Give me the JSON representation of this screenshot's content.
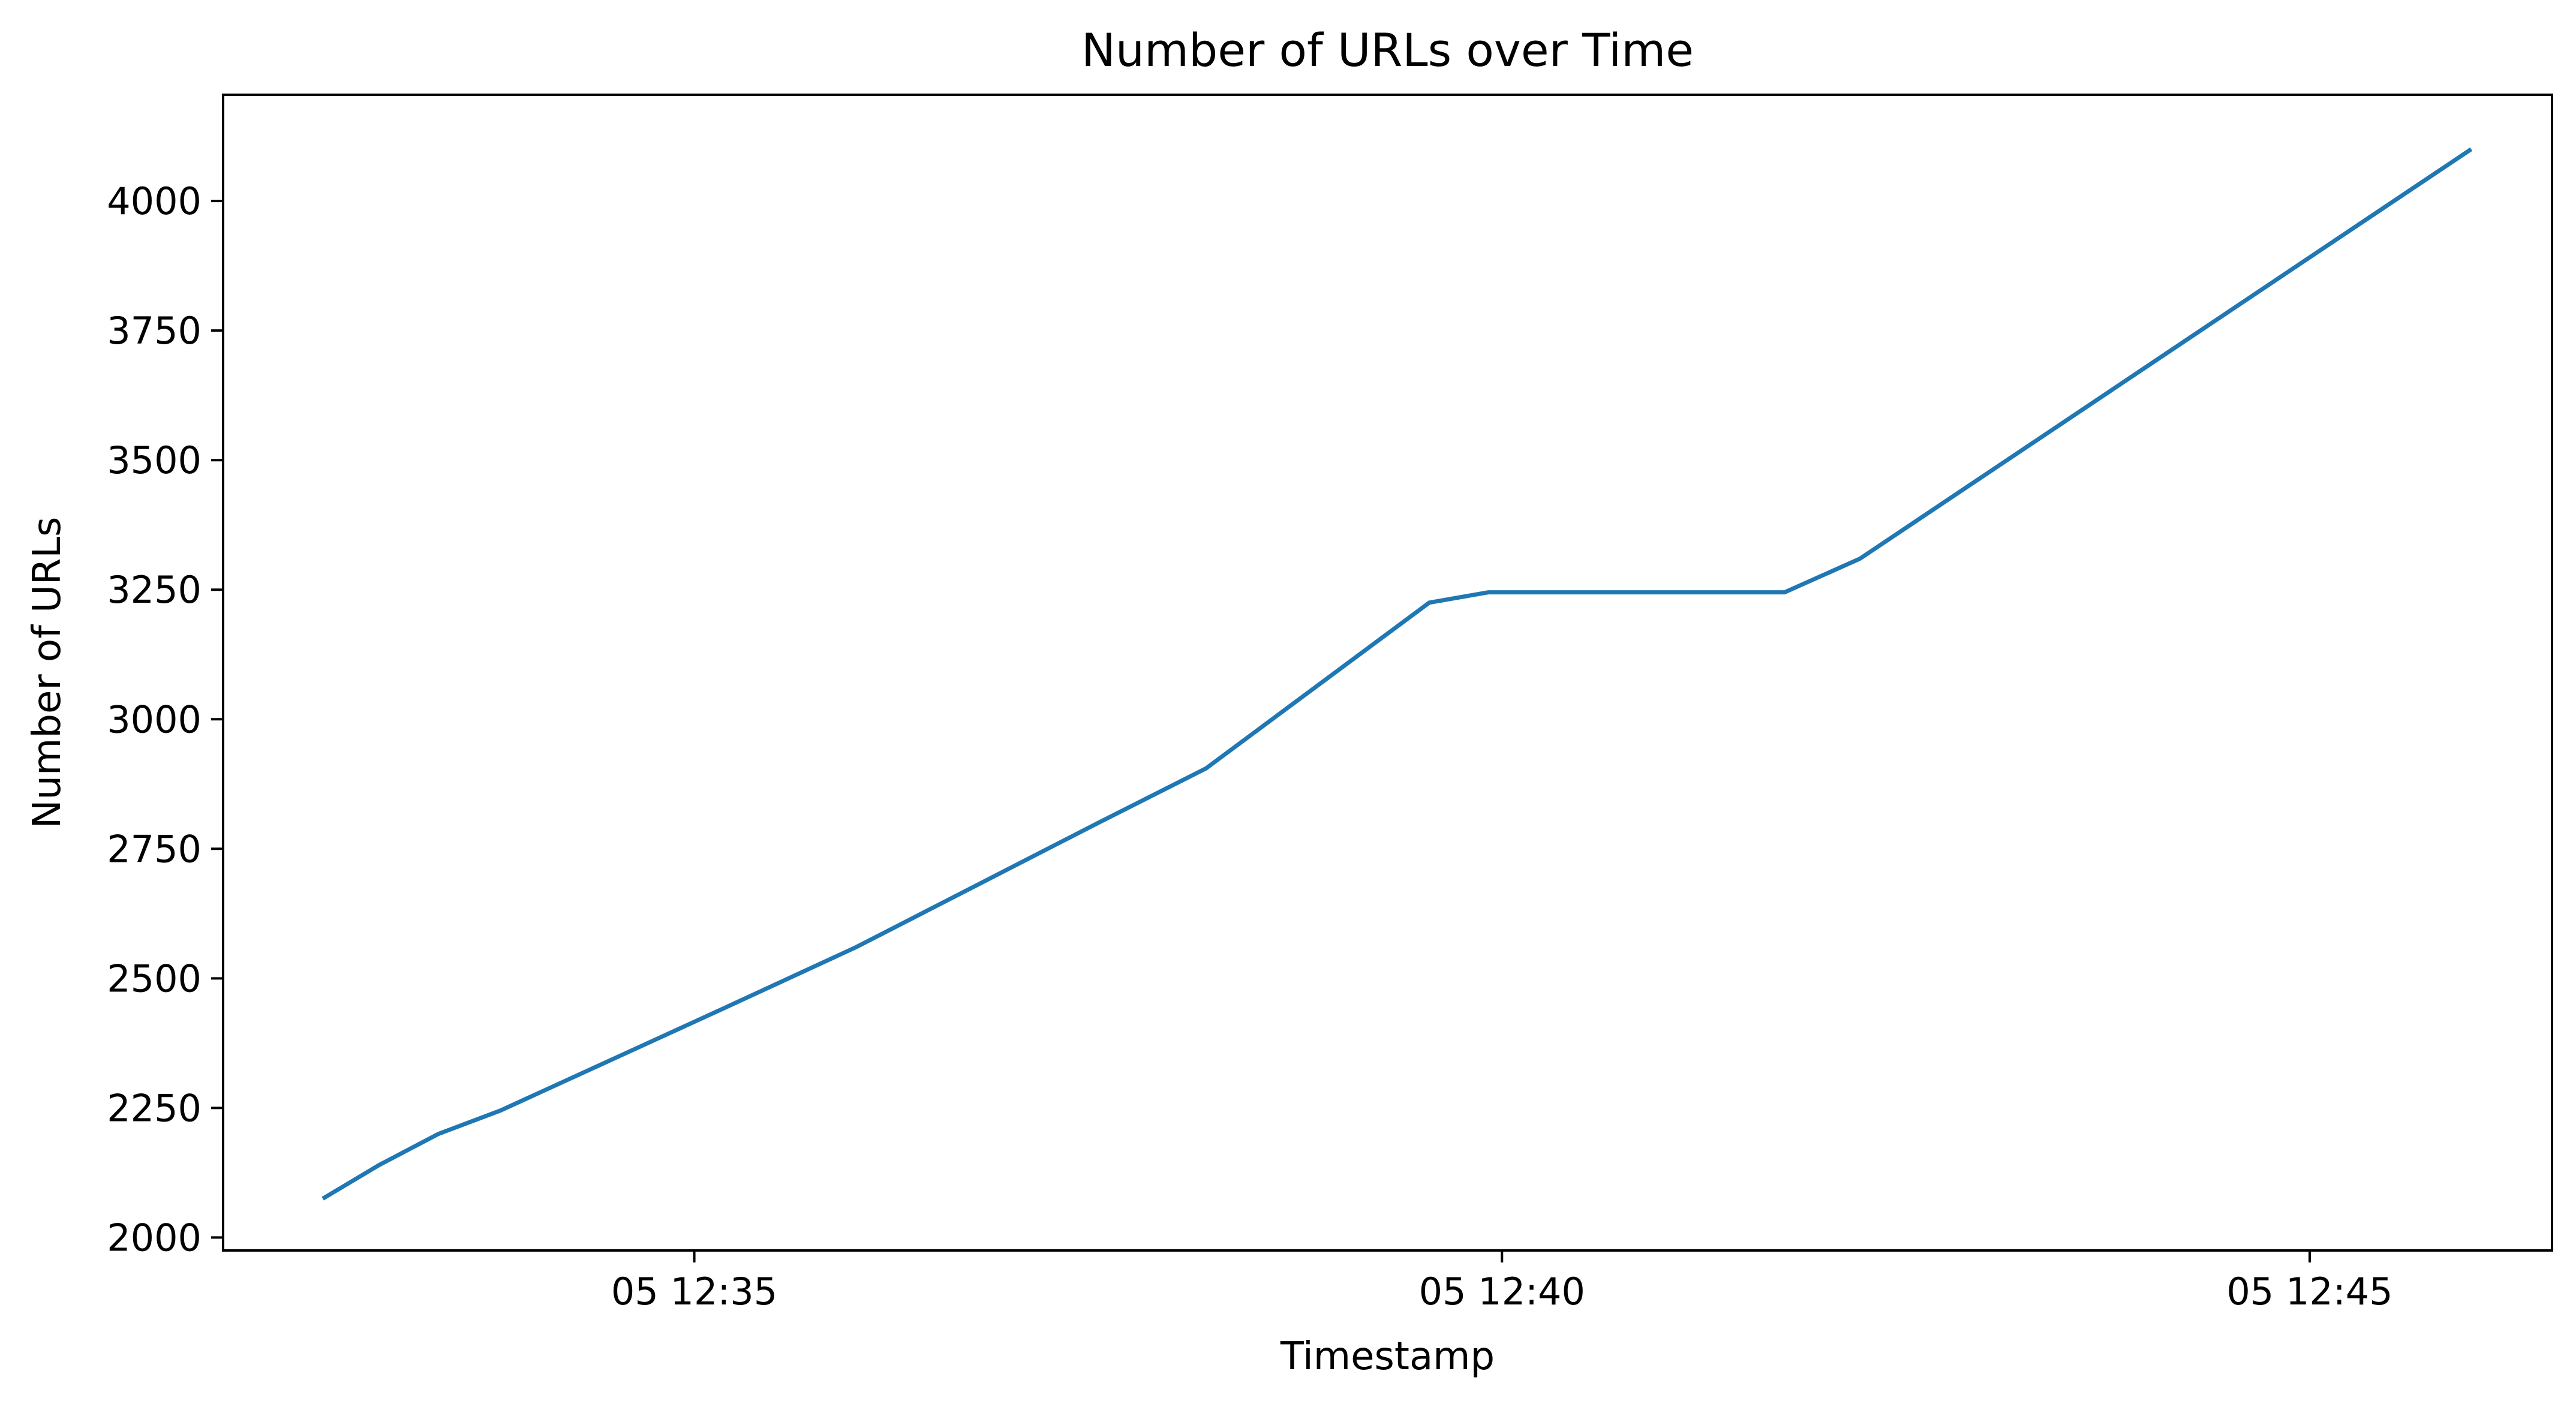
{
  "chart_data": {
    "type": "line",
    "title": "Number of URLs over Time",
    "xlabel": "Timestamp",
    "ylabel": "Number of URLs",
    "x_tick_labels": [
      "05 12:35",
      "05 12:40",
      "05 12:45"
    ],
    "x_ticks_minutes": [
      "12:35",
      "12:40",
      "12:45"
    ],
    "y_ticks": [
      2000,
      2250,
      2500,
      2750,
      3000,
      3250,
      3500,
      3750,
      4000
    ],
    "xlim": [
      "12:32:05",
      "12:46:30"
    ],
    "ylim": [
      1975,
      4205
    ],
    "grid": false,
    "series": [
      {
        "color": "#1f77b4",
        "x": [
          "12:32:42",
          "12:33:03",
          "12:33:25",
          "12:33:48",
          "12:35:10",
          "12:36:00",
          "12:37:30",
          "12:38:10",
          "12:39:33",
          "12:39:55",
          "12:41:45",
          "12:42:13",
          "12:46:00"
        ],
        "values": [
          2075,
          2140,
          2200,
          2245,
          2440,
          2560,
          2800,
          2905,
          3225,
          3245,
          3245,
          3310,
          4100
        ]
      }
    ]
  }
}
